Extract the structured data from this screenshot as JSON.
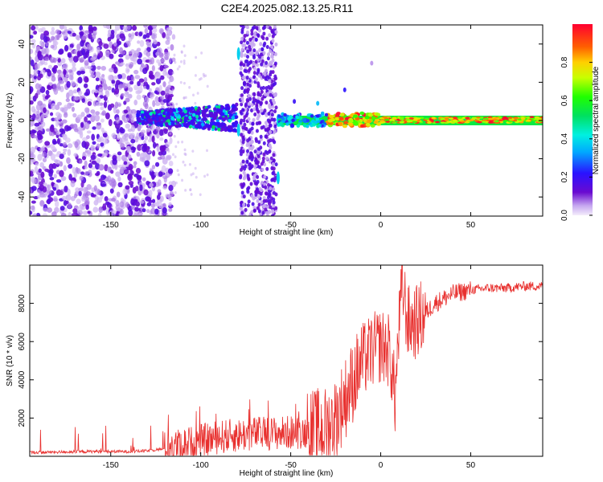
{
  "chart_data": [
    {
      "type": "heatmap",
      "title": "C2E4.2025.082.13.25.R11",
      "xlabel": "Height of straight line (km)",
      "ylabel": "Frequency (Hz)",
      "xlim": [
        -195,
        90
      ],
      "ylim": [
        -50,
        50
      ],
      "xticks": [
        -150,
        -100,
        -50,
        0,
        50
      ],
      "yticks": [
        -40,
        -20,
        0,
        20,
        40
      ],
      "colorbar": {
        "label": "Normalized spectral amplitude",
        "range": [
          0,
          1
        ],
        "ticks": [
          "0.0",
          "0.2",
          "0.4",
          "0.6",
          "0.8"
        ],
        "colormap": "rainbow (violet to red, white at zero)"
      },
      "features": [
        {
          "x_range": [
            -195,
            -115
          ],
          "f_range": [
            -50,
            50
          ],
          "amplitude": "low, broadband noise"
        },
        {
          "x_range": [
            -135,
            -80
          ],
          "f_range": [
            -8,
            8
          ],
          "amplitude": "0.1-0.5 band near 0 Hz"
        },
        {
          "x_range": [
            -78,
            -58
          ],
          "f_range": [
            -50,
            50
          ],
          "amplitude": "broadband noise stripe"
        },
        {
          "x_range": [
            -57,
            90
          ],
          "f_range": [
            -3,
            3
          ],
          "amplitude": "0.5-1.0 narrow band near 0 Hz"
        }
      ]
    },
    {
      "type": "line",
      "xlabel": "Height of straight line (km)",
      "ylabel": "SNR (10 * v/v)",
      "xlim": [
        -195,
        90
      ],
      "ylim": [
        0,
        10000
      ],
      "xticks": [
        -150,
        -100,
        -50,
        0,
        50
      ],
      "yticks": [
        2000,
        4000,
        6000,
        8000
      ],
      "color": "#e8302e",
      "series": [
        {
          "x": [
            -195,
            -180,
            -160,
            -140,
            -130,
            -120,
            -110,
            -100,
            -90,
            -80,
            -70,
            -60,
            -50,
            -40,
            -30,
            -25,
            -20,
            -15,
            -10,
            -5,
            0,
            5,
            8,
            10,
            12,
            15,
            20,
            25,
            30,
            40,
            50,
            60,
            70,
            80,
            90
          ],
          "values": [
            200,
            220,
            250,
            250,
            280,
            400,
            600,
            800,
            1000,
            1100,
            1200,
            1200,
            1250,
            1300,
            1500,
            2000,
            3000,
            4000,
            5000,
            5500,
            5800,
            5500,
            3000,
            6500,
            9000,
            7000,
            7000,
            7500,
            8000,
            8500,
            8700,
            8800,
            8800,
            8900,
            8900
          ]
        }
      ]
    }
  ]
}
